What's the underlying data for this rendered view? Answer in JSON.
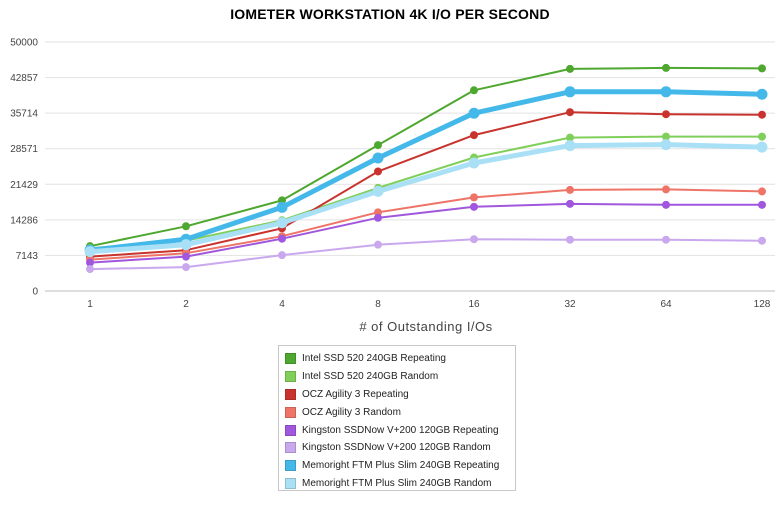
{
  "chart_data": {
    "type": "line",
    "title": "IOMETER WORKSTATION 4K I/O PER SECOND",
    "xlabel": "# of Outstanding I/Os",
    "ylabel": "",
    "categories": [
      "1",
      "2",
      "4",
      "8",
      "16",
      "32",
      "64",
      "128"
    ],
    "y_ticks": [
      "0",
      "7143",
      "14286",
      "21429",
      "28571",
      "35714",
      "42857",
      "50000"
    ],
    "ylim": [
      0,
      50000
    ],
    "grid": "horizontal",
    "legend_position": "bottom-center",
    "series": [
      {
        "name": "Intel SSD 520 240GB Repeating",
        "color": "#4ea72e",
        "values": [
          9000,
          13000,
          18200,
          29300,
          40300,
          44600,
          44800,
          44700
        ]
      },
      {
        "name": "Intel SSD 520 240GB Random",
        "color": "#7fcf5a",
        "values": [
          8600,
          10100,
          14200,
          20700,
          26800,
          30800,
          31000,
          31000
        ]
      },
      {
        "name": "OCZ Agility 3 Repeating",
        "color": "#c9332d",
        "values": [
          6900,
          8200,
          12600,
          24000,
          31300,
          35900,
          35500,
          35400
        ]
      },
      {
        "name": "OCZ Agility 3 Random",
        "color": "#ee7468",
        "values": [
          6300,
          7600,
          11000,
          15800,
          18800,
          20300,
          20400,
          20000
        ]
      },
      {
        "name": "Kingston SSDNow V+200 120GB Repeating",
        "color": "#a057dd",
        "values": [
          5700,
          6900,
          10500,
          14700,
          16900,
          17500,
          17300,
          17300
        ]
      },
      {
        "name": "Kingston SSDNow V+200 120GB Random",
        "color": "#c9a8ee",
        "values": [
          4400,
          4800,
          7200,
          9300,
          10400,
          10300,
          10300,
          10100
        ]
      },
      {
        "name": "Memoright FTM Plus Slim 240GB Repeating",
        "color": "#45b8ea",
        "values": [
          8200,
          10400,
          16800,
          26700,
          35700,
          40000,
          40000,
          39500
        ]
      },
      {
        "name": "Memoright FTM Plus Slim 240GB Random",
        "color": "#a9e0f6",
        "values": [
          7900,
          9300,
          13700,
          20000,
          25700,
          29200,
          29400,
          28900
        ]
      }
    ]
  }
}
